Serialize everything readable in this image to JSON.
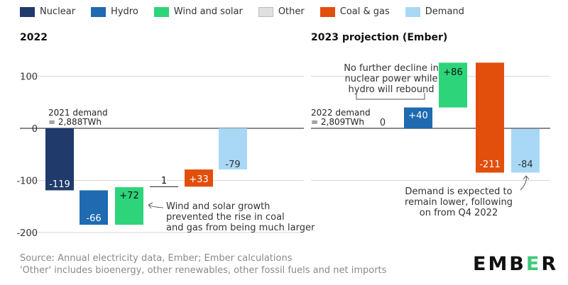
{
  "legend": [
    {
      "label": "Nuclear",
      "color": "#1f3a6b"
    },
    {
      "label": "Hydro",
      "color": "#1f6ab0"
    },
    {
      "label": "Wind and solar",
      "color": "#2ed47a"
    },
    {
      "label": "Other",
      "color": "#e0e0e0"
    },
    {
      "label": "Coal & gas",
      "color": "#e24e0c"
    },
    {
      "label": "Demand",
      "color": "#a8d8f5"
    }
  ],
  "chart_data": [
    {
      "type": "bar",
      "title": "2022",
      "ylim": [
        -200,
        130
      ],
      "yticks": [
        100,
        0,
        -100,
        -200
      ],
      "baseline_label": [
        "2021 demand",
        "= 2,888TWh"
      ],
      "bars": [
        {
          "category": "Nuclear",
          "start": 0,
          "end": -119,
          "label": "-119",
          "color": "#1f3a6b"
        },
        {
          "category": "Hydro",
          "start": -119,
          "end": -185,
          "label": "-66",
          "color": "#1f6ab0"
        },
        {
          "category": "Wind and solar",
          "start": -185,
          "end": -113,
          "label": "+72",
          "color": "#2ed47a"
        },
        {
          "category": "Other",
          "start": -113,
          "end": -112,
          "label": "1",
          "color": "#e0e0e0"
        },
        {
          "category": "Coal & gas",
          "start": -112,
          "end": -79,
          "label": "+33",
          "color": "#e24e0c"
        },
        {
          "category": "Demand",
          "start": -79,
          "end": 0,
          "label": "-79",
          "color": "#a8d8f5"
        }
      ],
      "annotations": [
        {
          "text": [
            "Wind and solar growth",
            "prevented the rise in coal",
            "and gas from being much larger"
          ]
        }
      ]
    },
    {
      "type": "bar",
      "title": "2023 projection (Ember)",
      "ylim": [
        -200,
        130
      ],
      "baseline_label": [
        "2022 demand",
        "= 2,809TWh"
      ],
      "bars": [
        {
          "category": "Nuclear",
          "start": 0,
          "end": 0,
          "label": "0",
          "color": "#1f3a6b"
        },
        {
          "category": "Hydro",
          "start": 0,
          "end": 40,
          "label": "+40",
          "color": "#1f6ab0"
        },
        {
          "category": "Wind and solar",
          "start": 40,
          "end": 126,
          "label": "+86",
          "color": "#2ed47a"
        },
        {
          "category": "Coal & gas",
          "start": 126,
          "end": -85,
          "label": "-211",
          "color": "#e24e0c"
        },
        {
          "category": "Demand",
          "start": -85,
          "end": -1,
          "label": "-84",
          "color": "#a8d8f5"
        }
      ],
      "annotations": [
        {
          "text": [
            "No further decline in",
            "nuclear power while",
            "hydro will rebound"
          ]
        },
        {
          "text": [
            "Demand is expected to",
            "remain lower, following",
            "on from Q4 2022"
          ]
        }
      ]
    }
  ],
  "source": [
    "Source: Annual electricity data, Ember; Ember calculations",
    "'Other' includes bioenergy, other renewables, other fossil fuels and net imports"
  ],
  "logo": {
    "part1": "EMB",
    "part2": "E",
    "part3": "R"
  }
}
